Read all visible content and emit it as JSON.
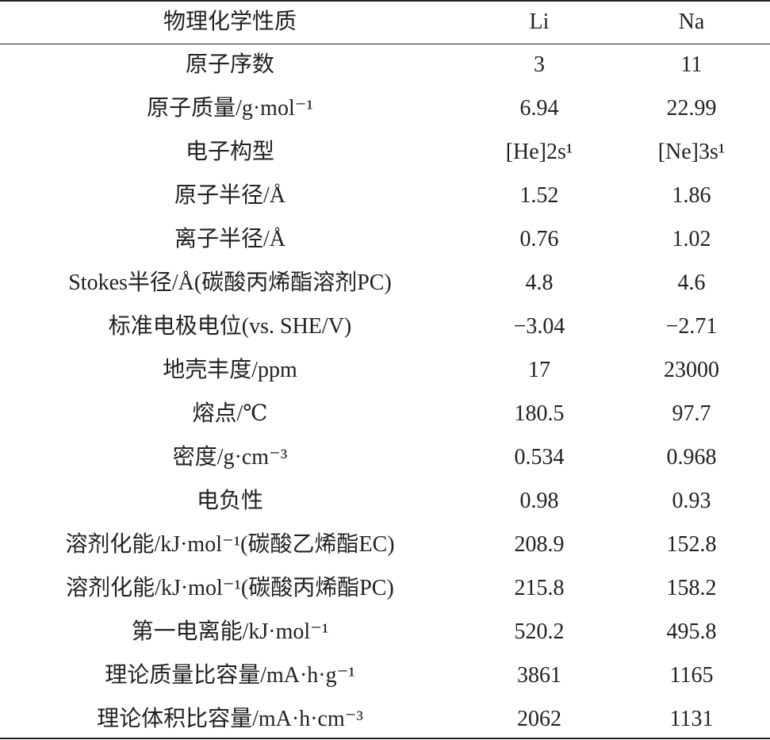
{
  "table": {
    "header": [
      "物理化学性质",
      "Li",
      "Na"
    ],
    "rows": [
      [
        "原子序数",
        "3",
        "11"
      ],
      [
        "原子质量/g·mol⁻¹",
        "6.94",
        "22.99"
      ],
      [
        "电子构型",
        "[He]2s¹",
        "[Ne]3s¹"
      ],
      [
        "原子半径/Å",
        "1.52",
        "1.86"
      ],
      [
        "离子半径/Å",
        "0.76",
        "1.02"
      ],
      [
        "Stokes半径/Å(碳酸丙烯酯溶剂PC)",
        "4.8",
        "4.6"
      ],
      [
        "标准电极电位(vs. SHE/V)",
        "−3.04",
        "−2.71"
      ],
      [
        "地壳丰度/ppm",
        "17",
        "23000"
      ],
      [
        "熔点/℃",
        "180.5",
        "97.7"
      ],
      [
        "密度/g·cm⁻³",
        "0.534",
        "0.968"
      ],
      [
        "电负性",
        "0.98",
        "0.93"
      ],
      [
        "溶剂化能/kJ·mol⁻¹(碳酸乙烯酯EC)",
        "208.9",
        "152.8"
      ],
      [
        "溶剂化能/kJ·mol⁻¹(碳酸丙烯酯PC)",
        "215.8",
        "158.2"
      ],
      [
        "第一电离能/kJ·mol⁻¹",
        "520.2",
        "495.8"
      ],
      [
        "理论质量比容量/mA·h·g⁻¹",
        "3861",
        "1165"
      ],
      [
        "理论体积比容量/mA·h·cm⁻³",
        "2062",
        "1131"
      ]
    ]
  }
}
